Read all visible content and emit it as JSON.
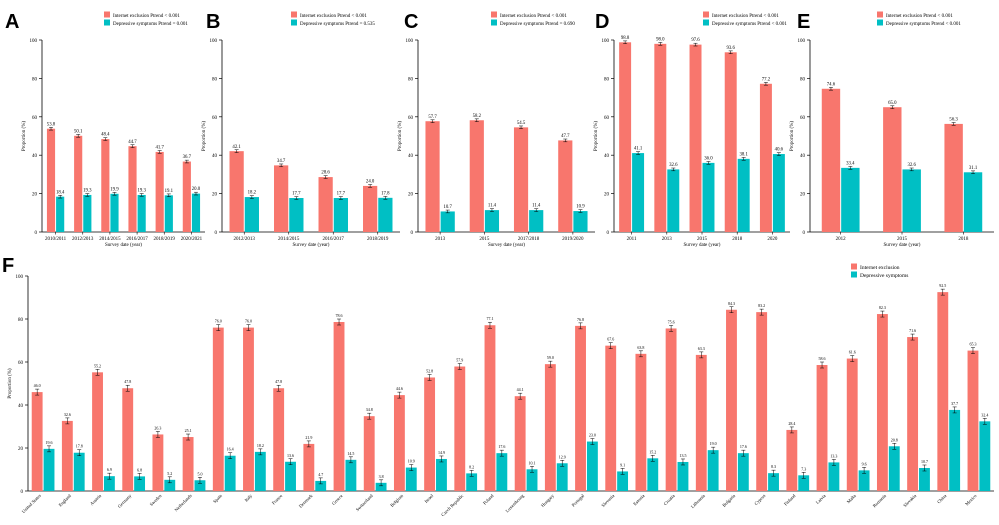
{
  "colors": {
    "exclusion": "#F8766D",
    "depressive": "#00BFC4",
    "axis": "#000000"
  },
  "legend_labels": {
    "exclusion": "Internet exclusion",
    "depressive": "Depressive symptoms"
  },
  "chart_data": [
    {
      "panel": "A",
      "type": "bar",
      "ylabel": "Proportion (%)",
      "xlabel": "Survey date (year)",
      "ylim": [
        0,
        100
      ],
      "yticks": [
        "0",
        "20",
        "40",
        "60",
        "80",
        "100"
      ],
      "legend": [
        "Internet exclusion Ptrend < 0.001",
        "Depressive symptoms Ptrend = 0.001"
      ],
      "categories": [
        "2010/2011",
        "2012/2013",
        "2014/2015",
        "2016/2017",
        "2018/2019",
        "2020/2021"
      ],
      "series": [
        {
          "name": "Internet exclusion",
          "values": [
            53.8,
            50.1,
            48.4,
            44.7,
            41.7,
            36.7
          ],
          "labels": [
            "53.8",
            "50.1",
            "48.4",
            "44.7",
            "41.7",
            "36.7"
          ]
        },
        {
          "name": "Depressive symptoms",
          "values": [
            18.4,
            19.3,
            19.9,
            19.3,
            19.1,
            20.0
          ],
          "labels": [
            "18.4",
            "19.3",
            "19.9",
            "19.3",
            "19.1",
            "20.0"
          ]
        }
      ]
    },
    {
      "panel": "B",
      "type": "bar",
      "ylabel": "Proportion (%)",
      "xlabel": "Survey date (year)",
      "ylim": [
        0,
        100
      ],
      "yticks": [
        "0",
        "20",
        "40",
        "60",
        "80",
        "100"
      ],
      "legend": [
        "Internet exclusion Ptrend < 0.001",
        "Depressive symptoms Ptrend = 0.535"
      ],
      "categories": [
        "2012/2013",
        "2014/2015",
        "2016/2017",
        "2018/2019"
      ],
      "series": [
        {
          "name": "Internet exclusion",
          "values": [
            42.1,
            34.7,
            28.6,
            24.0
          ],
          "labels": [
            "42.1",
            "34.7",
            "28.6",
            "24.0"
          ]
        },
        {
          "name": "Depressive symptoms",
          "values": [
            18.2,
            17.7,
            17.7,
            17.8
          ],
          "labels": [
            "18.2",
            "17.7",
            "17.7",
            "17.8"
          ]
        }
      ]
    },
    {
      "panel": "C",
      "type": "bar",
      "ylabel": "Proportion (%)",
      "xlabel": "Survey date (year)",
      "ylim": [
        0,
        100
      ],
      "yticks": [
        "0",
        "20",
        "40",
        "60",
        "80",
        "100"
      ],
      "legend": [
        "Internet exclusion Ptrend < 0.001",
        "Depressive symptoms Ptrend = 0.690"
      ],
      "categories": [
        "2013",
        "2015",
        "2017/2018",
        "2019/2020"
      ],
      "series": [
        {
          "name": "Internet exclusion",
          "values": [
            57.7,
            58.2,
            54.5,
            47.7
          ],
          "labels": [
            "57.7",
            "58.2",
            "54.5",
            "47.7"
          ]
        },
        {
          "name": "Depressive symptoms",
          "values": [
            10.7,
            11.4,
            11.4,
            10.9
          ],
          "labels": [
            "10.7",
            "11.4",
            "11.4",
            "10.9"
          ]
        }
      ]
    },
    {
      "panel": "D",
      "type": "bar",
      "ylabel": "Proportion (%)",
      "xlabel": "Survey date (year)",
      "ylim": [
        0,
        100
      ],
      "yticks": [
        "0",
        "20",
        "40",
        "60",
        "80",
        "100"
      ],
      "legend": [
        "Internet exclusion Ptrend < 0.001",
        "Depressive symptoms Ptrend < 0.001"
      ],
      "categories": [
        "2011",
        "2013",
        "2015",
        "2018",
        "2020"
      ],
      "series": [
        {
          "name": "Internet exclusion",
          "values": [
            98.8,
            98.0,
            97.6,
            93.6,
            77.2
          ],
          "labels": [
            "98.8",
            "98.0",
            "97.6",
            "93.6",
            "77.2"
          ]
        },
        {
          "name": "Depressive symptoms",
          "values": [
            41.1,
            32.6,
            36.0,
            38.1,
            40.6
          ],
          "labels": [
            "41.1",
            "32.6",
            "36.0",
            "38.1",
            "40.6"
          ]
        }
      ]
    },
    {
      "panel": "E",
      "type": "bar",
      "ylabel": "Proportion (%)",
      "xlabel": "Survey date (year)",
      "ylim": [
        0,
        100
      ],
      "yticks": [
        "0",
        "20",
        "40",
        "60",
        "80",
        "100"
      ],
      "legend": [
        "Internet exclusion Ptrend < 0.001",
        "Depressive symptoms Ptrend < 0.001"
      ],
      "categories": [
        "2012",
        "2015",
        "2018"
      ],
      "series": [
        {
          "name": "Internet exclusion",
          "values": [
            74.6,
            65.0,
            56.3
          ],
          "labels": [
            "74.6",
            "65.0",
            "56.3"
          ]
        },
        {
          "name": "Depressive symptoms",
          "values": [
            33.4,
            32.6,
            31.1
          ],
          "labels": [
            "33.4",
            "32.6",
            "31.1"
          ]
        }
      ]
    },
    {
      "panel": "F",
      "type": "bar",
      "ylabel": "Proportion (%)",
      "xlabel": "",
      "ylim": [
        0,
        100
      ],
      "yticks": [
        "0",
        "20",
        "40",
        "60",
        "80",
        "100"
      ],
      "legend": [
        "Internet exclusion",
        "Depressive symptoms"
      ],
      "categories": [
        "United States",
        "England",
        "Austria",
        "Germany",
        "Sweden",
        "Netherlands",
        "Spain",
        "Italy",
        "France",
        "Denmark",
        "Greece",
        "Switzerland",
        "Belgium",
        "Israel",
        "Czech Republic",
        "Poland",
        "Luxembourg",
        "Hungary",
        "Portugal",
        "Slovenia",
        "Estonia",
        "Croatia",
        "Lithuania",
        "Bulgaria",
        "Cyprus",
        "Finland",
        "Latvia",
        "Malta",
        "Romania",
        "Slovakia",
        "China",
        "Mexico"
      ],
      "series": [
        {
          "name": "Internet exclusion",
          "values": [
            46.0,
            32.6,
            55.2,
            47.8,
            26.3,
            25.1,
            76.0,
            76.0,
            47.8,
            21.9,
            78.6,
            34.8,
            44.6,
            52.8,
            57.9,
            77.1,
            44.1,
            59.0,
            76.8,
            67.6,
            63.8,
            75.6,
            63.3,
            84.3,
            83.2,
            28.4,
            58.6,
            61.6,
            82.3,
            71.6,
            92.5,
            65.3
          ],
          "labels": [
            "46.0",
            "32.6",
            "55.2",
            "47.8",
            "26.3",
            "25.1",
            "76.0",
            "76.0",
            "47.8",
            "21.9",
            "78.6",
            "34.8",
            "44.6",
            "52.8",
            "57.9",
            "77.1",
            "44.1",
            "59.0",
            "76.8",
            "67.6",
            "63.8",
            "75.6",
            "63.3",
            "84.3",
            "83.2",
            "28.4",
            "58.6",
            "61.6",
            "82.3",
            "71.6",
            "92.5",
            "65.3"
          ]
        },
        {
          "name": "Depressive symptoms",
          "values": [
            19.6,
            17.8,
            6.9,
            6.8,
            5.2,
            5.0,
            16.4,
            18.2,
            13.6,
            4.7,
            14.5,
            3.8,
            10.9,
            14.9,
            8.2,
            17.6,
            10.1,
            12.9,
            23.0,
            9.1,
            15.2,
            13.5,
            19.0,
            17.6,
            8.3,
            7.3,
            13.3,
            9.6,
            20.8,
            10.7,
            37.7,
            32.4
          ],
          "labels": [
            "19.6",
            "17.8",
            "6.9",
            "6.8",
            "5.2",
            "5.0",
            "16.4",
            "18.2",
            "13.6",
            "4.7",
            "14.5",
            "3.8",
            "10.9",
            "14.9",
            "8.2",
            "17.6",
            "10.1",
            "12.9",
            "23.0",
            "9.1",
            "15.2",
            "13.5",
            "19.0",
            "17.6",
            "8.3",
            "7.3",
            "13.3",
            "9.6",
            "20.8",
            "10.7",
            "37.7",
            "32.4"
          ]
        }
      ]
    }
  ]
}
